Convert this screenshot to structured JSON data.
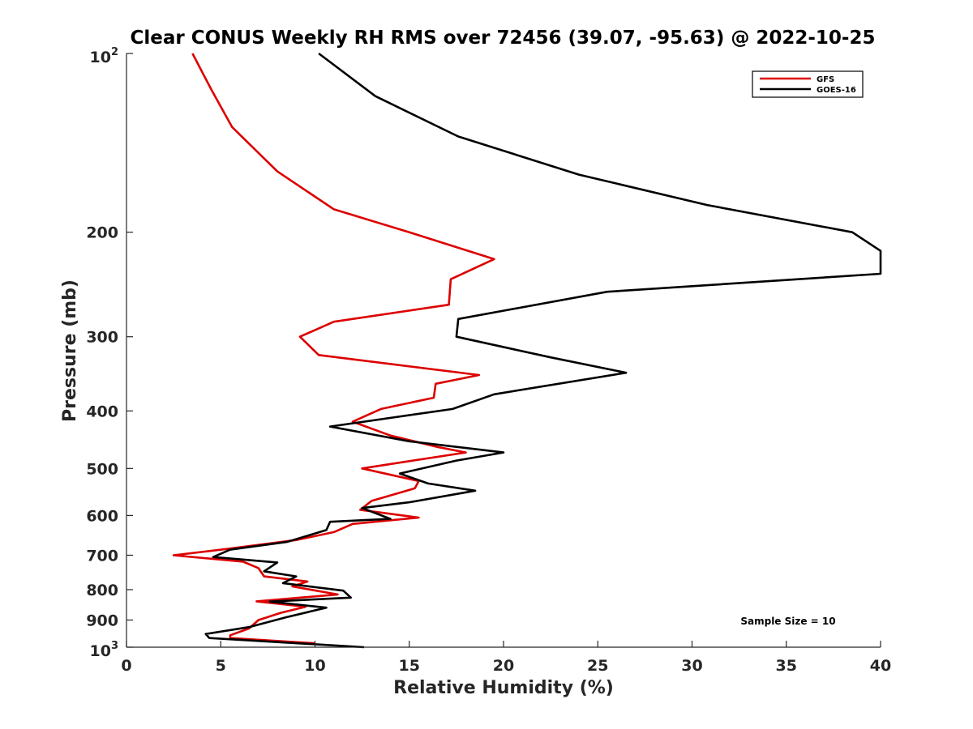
{
  "chart_data": {
    "type": "line",
    "title": "Clear CONUS Weekly RH RMS over 72456 (39.07, -95.63) @ 2022-10-25",
    "xlabel": "Relative Humidity (%)",
    "ylabel": "Pressure (mb)",
    "xlim": [
      0,
      40
    ],
    "ylim": [
      100,
      1000
    ],
    "yscale": "log",
    "y_reversed": true,
    "grid": false,
    "x_ticks": [
      0,
      5,
      10,
      15,
      20,
      25,
      30,
      35,
      40
    ],
    "x_tick_labels": [
      "0",
      "5",
      "10",
      "15",
      "20",
      "25",
      "30",
      "35",
      "40"
    ],
    "y_ticks": [
      200,
      300,
      400,
      500,
      600,
      700,
      800,
      900
    ],
    "y_tick_labels": [
      "200",
      "300",
      "400",
      "500",
      "600",
      "700",
      "800",
      "900"
    ],
    "y_top_label": {
      "base": "10",
      "exp": "2"
    },
    "y_bottom_label": {
      "base": "10",
      "exp": "3"
    },
    "legend_position": "top-right",
    "annotation": "Sample Size = 10",
    "series": [
      {
        "name": "GFS",
        "color": "#dd0000",
        "points": [
          [
            3.5,
            100
          ],
          [
            4.5,
            115
          ],
          [
            5.6,
            133
          ],
          [
            8.0,
            158
          ],
          [
            11.0,
            183
          ],
          [
            15.0,
            200
          ],
          [
            19.5,
            222
          ],
          [
            17.2,
            240
          ],
          [
            17.1,
            265
          ],
          [
            11.0,
            283
          ],
          [
            9.2,
            300
          ],
          [
            10.2,
            322
          ],
          [
            18.7,
            348
          ],
          [
            16.4,
            360
          ],
          [
            16.3,
            380
          ],
          [
            13.5,
            397
          ],
          [
            12.0,
            417
          ],
          [
            14.0,
            440
          ],
          [
            16.5,
            460
          ],
          [
            18.0,
            470
          ],
          [
            15.0,
            486
          ],
          [
            12.5,
            500
          ],
          [
            15.5,
            525
          ],
          [
            15.3,
            540
          ],
          [
            13.0,
            567
          ],
          [
            12.4,
            587
          ],
          [
            15.5,
            605
          ],
          [
            12.0,
            620
          ],
          [
            11.0,
            640
          ],
          [
            9.0,
            660
          ],
          [
            5.5,
            682
          ],
          [
            2.5,
            700
          ],
          [
            6.2,
            718
          ],
          [
            7.0,
            736
          ],
          [
            7.3,
            760
          ],
          [
            9.6,
            775
          ],
          [
            8.8,
            790
          ],
          [
            11.2,
            815
          ],
          [
            6.9,
            837
          ],
          [
            9.5,
            855
          ],
          [
            8.2,
            875
          ],
          [
            7.0,
            900
          ],
          [
            6.5,
            930
          ],
          [
            5.5,
            955
          ],
          [
            5.5,
            965
          ],
          [
            10.0,
            985
          ]
        ]
      },
      {
        "name": "GOES-16",
        "color": "#000000",
        "points": [
          [
            10.2,
            100
          ],
          [
            13.2,
            118
          ],
          [
            17.6,
            138
          ],
          [
            24.0,
            160
          ],
          [
            30.8,
            180
          ],
          [
            38.5,
            200
          ],
          [
            40.0,
            215
          ],
          [
            40.0,
            235
          ],
          [
            25.5,
            252
          ],
          [
            17.6,
            280
          ],
          [
            17.5,
            300
          ],
          [
            22.5,
            325
          ],
          [
            26.5,
            345
          ],
          [
            19.5,
            375
          ],
          [
            17.3,
            397
          ],
          [
            10.8,
            425
          ],
          [
            15.0,
            450
          ],
          [
            20.0,
            470
          ],
          [
            17.5,
            485
          ],
          [
            14.5,
            510
          ],
          [
            16.0,
            530
          ],
          [
            18.5,
            545
          ],
          [
            15.0,
            570
          ],
          [
            12.5,
            583
          ],
          [
            14.0,
            608
          ],
          [
            10.8,
            615
          ],
          [
            10.6,
            635
          ],
          [
            8.5,
            665
          ],
          [
            5.5,
            685
          ],
          [
            4.6,
            705
          ],
          [
            8.0,
            720
          ],
          [
            7.3,
            745
          ],
          [
            9.0,
            760
          ],
          [
            8.3,
            780
          ],
          [
            11.5,
            803
          ],
          [
            11.9,
            825
          ],
          [
            7.6,
            838
          ],
          [
            10.6,
            858
          ],
          [
            8.5,
            890
          ],
          [
            6.5,
            925
          ],
          [
            4.2,
            950
          ],
          [
            4.4,
            965
          ],
          [
            12.6,
            1000
          ]
        ]
      }
    ]
  }
}
